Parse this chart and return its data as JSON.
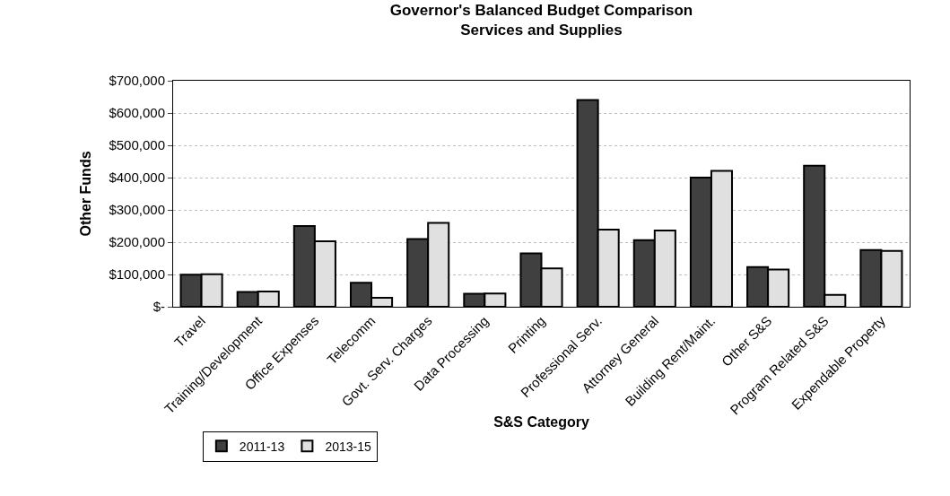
{
  "chart_data": {
    "type": "bar",
    "title": "Governor's Balanced Budget Comparison\nServices and Supplies",
    "xlabel": "S&S Category",
    "ylabel": "Other Funds",
    "categories": [
      "Travel",
      "Training/Development",
      "Office Expenses",
      "Telecomm",
      "Govt. Serv. Charges",
      "Data Processing",
      "Printing",
      "Professional Serv.",
      "Attorney General",
      "Building Rent/Maint.",
      "Other S&S",
      "Program Related S&S",
      "Expendable Property"
    ],
    "series": [
      {
        "name": "2011-13",
        "color": "#404040",
        "values": [
          99000,
          46000,
          250000,
          74000,
          210000,
          40000,
          165000,
          640000,
          206000,
          400000,
          123000,
          437000,
          176000
        ]
      },
      {
        "name": "2013-15",
        "color": "#e0e0e0",
        "values": [
          101000,
          47000,
          203000,
          28000,
          260000,
          41000,
          119000,
          239000,
          236000,
          421000,
          115000,
          37000,
          173000
        ]
      }
    ],
    "ylim": [
      0,
      700000
    ],
    "yticks": [
      {
        "value": 0,
        "label": "$-"
      },
      {
        "value": 100000,
        "label": "$100,000"
      },
      {
        "value": 200000,
        "label": "$200,000"
      },
      {
        "value": 300000,
        "label": "$300,000"
      },
      {
        "value": 400000,
        "label": "$400,000"
      },
      {
        "value": 500000,
        "label": "$500,000"
      },
      {
        "value": 600000,
        "label": "$600,000"
      },
      {
        "value": 700000,
        "label": "$700,000"
      }
    ],
    "grid": "y",
    "legend": "bottom left"
  }
}
